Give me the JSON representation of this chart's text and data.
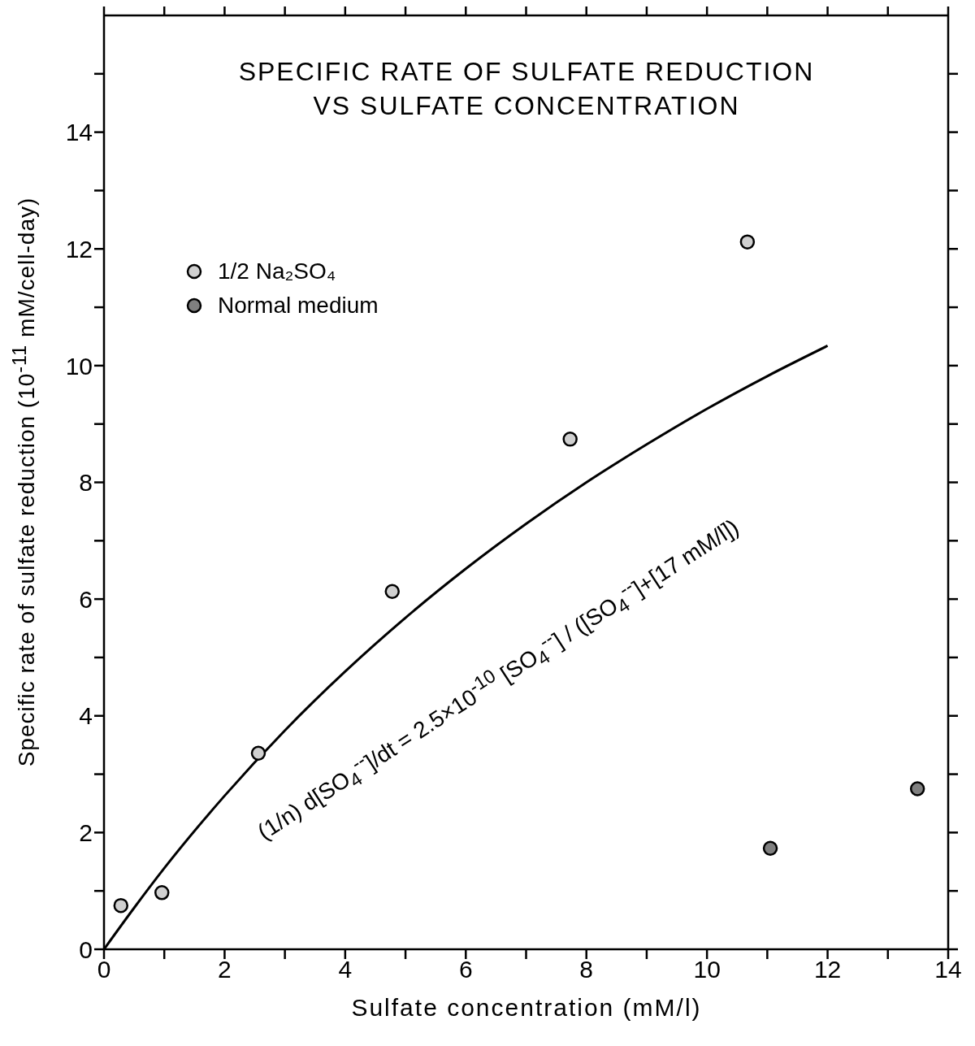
{
  "chart_data": {
    "type": "scatter",
    "title": "SPECIFIC RATE OF SULFATE REDUCTION\nVS SULFATE CONCENTRATION",
    "xlabel": "Sulfate concentration   (mM/l)",
    "ylabel": "Specific rate of sulfate reduction   (10$^{-11}$ mM/cell-day)",
    "xlim": [
      0,
      14
    ],
    "ylim": [
      0,
      16
    ],
    "xticks": [
      0,
      {
        "value": 1,
        "label": null
      },
      2,
      {
        "value": 3,
        "label": null
      },
      4,
      {
        "value": 5,
        "label": null
      },
      6,
      {
        "value": 7,
        "label": null
      },
      8,
      {
        "value": 9,
        "label": null
      },
      10,
      {
        "value": 11,
        "label": null
      },
      12,
      {
        "value": 13,
        "label": null
      },
      14
    ],
    "yticks": [
      0,
      {
        "value": 1,
        "label": null
      },
      2,
      {
        "value": 3,
        "label": null
      },
      4,
      {
        "value": 5,
        "label": null
      },
      6,
      {
        "value": 7,
        "label": null
      },
      8,
      {
        "value": 9,
        "label": null
      },
      10,
      {
        "value": 11,
        "label": null
      },
      12,
      {
        "value": 13,
        "label": null
      },
      14,
      {
        "value": 15,
        "label": null
      }
    ],
    "grid": false,
    "legend": "top left",
    "marker": "circle",
    "series": [
      {
        "name": "1/2 Na₂SO₄",
        "color": "#d0d0d0",
        "x": [
          0.28,
          0.96,
          2.56,
          4.78,
          7.73,
          10.67
        ],
        "values": [
          0.75,
          0.97,
          3.36,
          6.13,
          8.74,
          12.12
        ]
      },
      {
        "name": "Normal medium",
        "color": "#808080",
        "x": [
          11.05,
          13.49
        ],
        "values": [
          1.73,
          2.75
        ]
      },
      {
        "type": "line",
        "color": "#000000",
        "marker": "none",
        "x": [
          0,
          0.5,
          1,
          2,
          3,
          4,
          5,
          6,
          7,
          8,
          9,
          10,
          11,
          12
        ],
        "values": [
          0,
          0.71,
          1.39,
          2.63,
          3.75,
          4.76,
          5.68,
          6.52,
          7.29,
          8.0,
          8.65,
          9.26,
          9.82,
          10.34
        ]
      }
    ],
    "annotations": [
      "(1/n) d[SO$_{4}$$^{--}$]/dt = 2.5×10$^{-10}$ [SO$_{4}$$^{--}$] / ([SO$_{4}$$^{--}$]+[17 mM/l])"
    ]
  }
}
